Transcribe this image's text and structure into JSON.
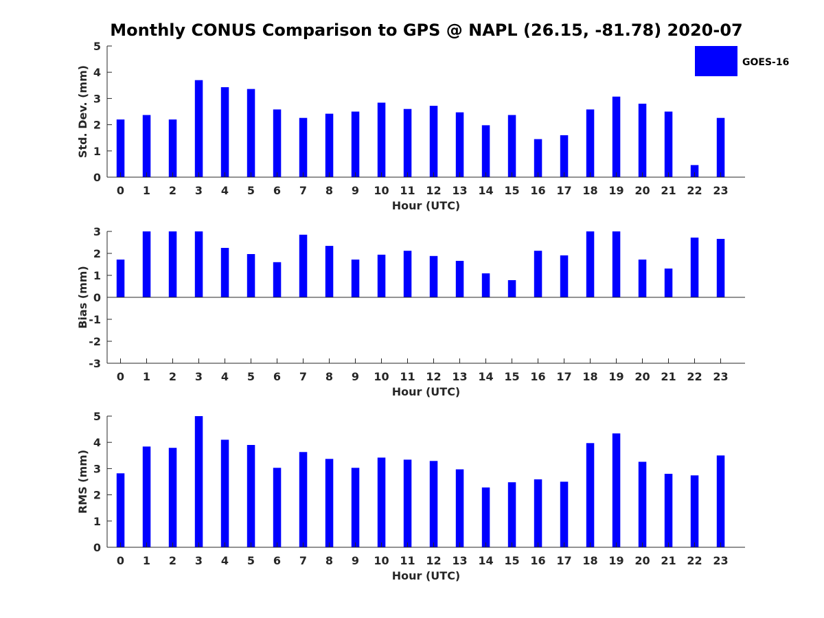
{
  "title": "Monthly CONUS Comparison to GPS @ NAPL (26.15, -81.78) 2020-07",
  "colors": {
    "bar": "#0000ff",
    "axis": "#262626",
    "background": "#ffffff"
  },
  "chart_data": [
    {
      "type": "bar",
      "title": "Monthly CONUS Comparison to GPS @ NAPL (26.15, -81.78) 2020-07",
      "xlabel": "Hour (UTC)",
      "ylabel": "Std. Dev. (mm)",
      "categories": [
        "0",
        "1",
        "2",
        "3",
        "4",
        "5",
        "6",
        "7",
        "8",
        "9",
        "10",
        "11",
        "12",
        "13",
        "14",
        "15",
        "16",
        "17",
        "18",
        "19",
        "20",
        "21",
        "22",
        "23"
      ],
      "ylim": [
        0,
        5
      ],
      "yticks": [
        "0",
        "1",
        "2",
        "3",
        "4",
        "5"
      ],
      "grid": false,
      "legend": {
        "position": "top-right",
        "entries": [
          "GOES-16"
        ]
      },
      "series": [
        {
          "name": "GOES-16",
          "values": [
            2.2,
            2.37,
            2.2,
            3.7,
            3.43,
            3.36,
            2.58,
            2.26,
            2.42,
            2.5,
            2.84,
            2.6,
            2.72,
            2.47,
            1.98,
            2.37,
            1.45,
            1.6,
            2.58,
            3.07,
            2.8,
            2.5,
            0.46,
            2.26
          ]
        }
      ]
    },
    {
      "type": "bar",
      "xlabel": "Hour (UTC)",
      "ylabel": "Bias (mm)",
      "categories": [
        "0",
        "1",
        "2",
        "3",
        "4",
        "5",
        "6",
        "7",
        "8",
        "9",
        "10",
        "11",
        "12",
        "13",
        "14",
        "15",
        "16",
        "17",
        "18",
        "19",
        "20",
        "21",
        "22",
        "23"
      ],
      "ylim": [
        -3,
        3
      ],
      "yticks": [
        "-3",
        "-2",
        "-1",
        "0",
        "1",
        "2",
        "3"
      ],
      "grid": false,
      "series": [
        {
          "name": "GOES-16",
          "values": [
            1.72,
            3.0,
            3.0,
            3.0,
            2.25,
            1.97,
            1.6,
            2.85,
            2.34,
            1.72,
            1.94,
            2.12,
            1.88,
            1.66,
            1.09,
            0.78,
            2.12,
            1.91,
            3.0,
            3.0,
            1.72,
            1.31,
            2.72,
            2.66
          ]
        }
      ]
    },
    {
      "type": "bar",
      "xlabel": "Hour (UTC)",
      "ylabel": "RMS (mm)",
      "categories": [
        "0",
        "1",
        "2",
        "3",
        "4",
        "5",
        "6",
        "7",
        "8",
        "9",
        "10",
        "11",
        "12",
        "13",
        "14",
        "15",
        "16",
        "17",
        "18",
        "19",
        "20",
        "21",
        "22",
        "23"
      ],
      "ylim": [
        0,
        5
      ],
      "yticks": [
        "0",
        "1",
        "2",
        "3",
        "4",
        "5"
      ],
      "grid": false,
      "series": [
        {
          "name": "GOES-16",
          "values": [
            2.82,
            3.84,
            3.79,
            5.0,
            4.1,
            3.9,
            3.03,
            3.63,
            3.37,
            3.03,
            3.42,
            3.34,
            3.29,
            2.97,
            2.28,
            2.48,
            2.59,
            2.5,
            3.97,
            4.34,
            3.26,
            2.8,
            2.74,
            3.5
          ]
        }
      ]
    }
  ]
}
